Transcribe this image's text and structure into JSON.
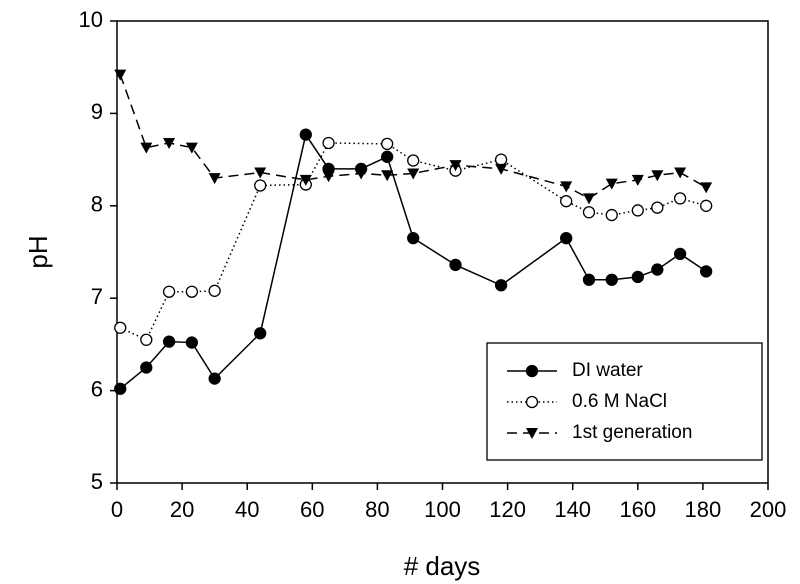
{
  "chart_data": {
    "type": "line",
    "xlabel": "# days",
    "ylabel": "pH",
    "xlim": [
      0,
      200
    ],
    "xticks": [
      0,
      20,
      40,
      60,
      80,
      100,
      120,
      140,
      160,
      180,
      200
    ],
    "ylim": [
      5,
      10
    ],
    "yticks": [
      5,
      6,
      7,
      8,
      9,
      10
    ],
    "legend": "lower right",
    "series": [
      {
        "name": "DI water",
        "color": "#000000",
        "line": "solid",
        "marker": "filled-circle",
        "x": [
          1,
          9,
          16,
          23,
          30,
          44,
          58,
          65,
          75,
          83,
          91,
          104,
          118,
          138,
          145,
          152,
          160,
          166,
          173,
          181
        ],
        "values": [
          6.02,
          6.25,
          6.53,
          6.52,
          6.13,
          6.62,
          8.77,
          8.4,
          8.4,
          8.53,
          7.65,
          7.36,
          7.14,
          7.65,
          7.2,
          7.2,
          7.23,
          7.31,
          7.48,
          7.29
        ]
      },
      {
        "name": "0.6 M NaCl",
        "color": "#000000",
        "line": "dotted",
        "marker": "open-circle",
        "x": [
          1,
          9,
          16,
          23,
          30,
          44,
          58,
          65,
          83,
          91,
          104,
          118,
          138,
          145,
          152,
          160,
          166,
          173,
          181
        ],
        "values": [
          6.68,
          6.55,
          7.07,
          7.07,
          7.08,
          8.22,
          8.23,
          8.68,
          8.67,
          8.49,
          8.38,
          8.5,
          8.05,
          7.93,
          7.9,
          7.95,
          7.98,
          8.08,
          8.0
        ]
      },
      {
        "name": "1st generation",
        "color": "#000000",
        "line": "dashed",
        "marker": "down-triangle",
        "x": [
          1,
          9,
          16,
          23,
          30,
          44,
          58,
          65,
          75,
          83,
          91,
          104,
          118,
          138,
          145,
          152,
          160,
          166,
          173,
          181
        ],
        "values": [
          9.42,
          8.63,
          8.68,
          8.63,
          8.3,
          8.36,
          8.28,
          8.32,
          8.35,
          8.33,
          8.35,
          8.44,
          8.4,
          8.21,
          8.08,
          8.24,
          8.28,
          8.33,
          8.36,
          8.2
        ]
      }
    ]
  }
}
